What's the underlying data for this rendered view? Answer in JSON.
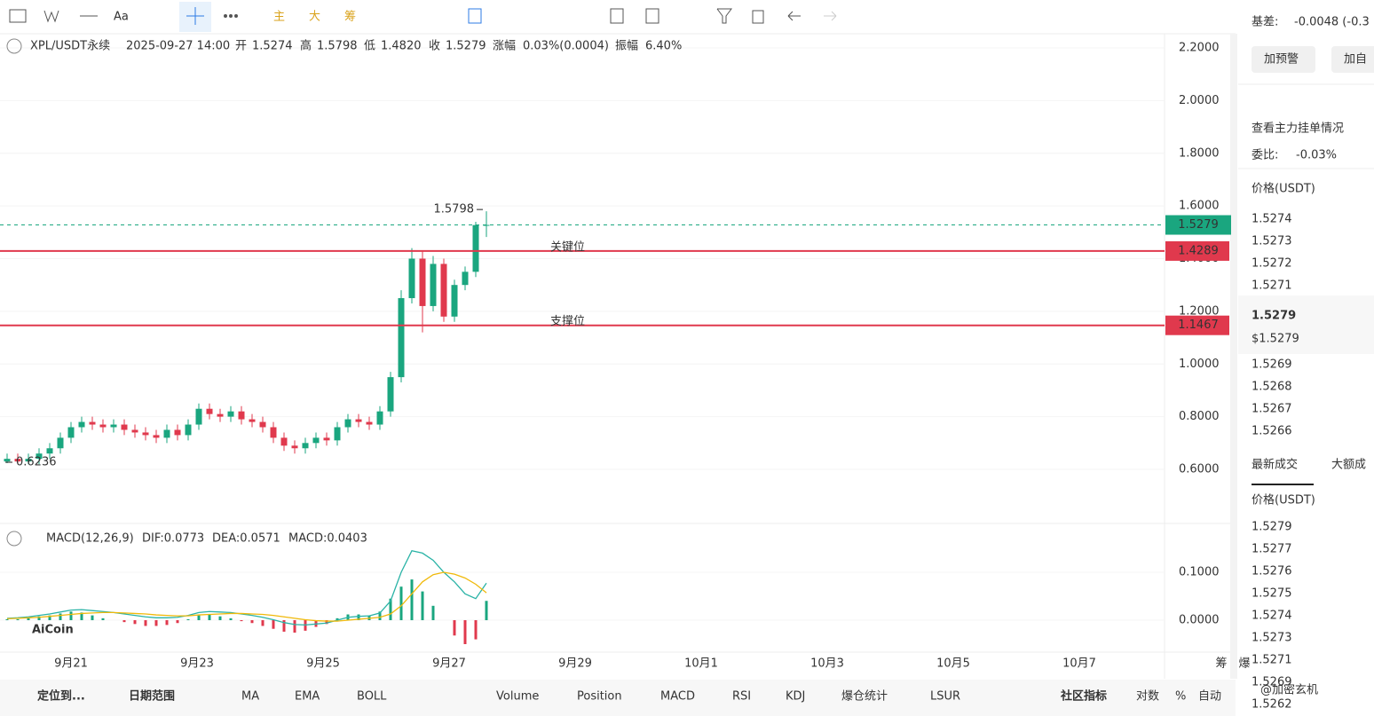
{
  "toolbar": {
    "font_icon": "Aa",
    "main": "主",
    "big": "大",
    "chips": "筹"
  },
  "chart_data": {
    "type": "candlestick",
    "header": {
      "symbol": "XPL/USDT永续",
      "time": "2025-09-27 14:00",
      "open_label": "开",
      "open": "1.5274",
      "high_label": "高",
      "high": "1.5798",
      "low_label": "低",
      "low": "1.4820",
      "close_label": "收",
      "close": "1.5279",
      "change_label": "涨幅",
      "change": "0.03%(0.0004)",
      "amp_label": "振幅",
      "amp": "6.40%"
    },
    "open": [
      0.63,
      0.64,
      0.63,
      0.64,
      0.66,
      0.68,
      0.72,
      0.76,
      0.78,
      0.77,
      0.76,
      0.77,
      0.75,
      0.74,
      0.73,
      0.72,
      0.75,
      0.73,
      0.77,
      0.83,
      0.81,
      0.8,
      0.82,
      0.79,
      0.78,
      0.76,
      0.72,
      0.69,
      0.68,
      0.7,
      0.72,
      0.71,
      0.76,
      0.79,
      0.78,
      0.77,
      0.82,
      0.95,
      1.25,
      1.4,
      1.22,
      1.38,
      1.18,
      1.3,
      1.35,
      1.5274
    ],
    "high": [
      0.66,
      0.66,
      0.66,
      0.68,
      0.7,
      0.74,
      0.78,
      0.8,
      0.8,
      0.79,
      0.79,
      0.79,
      0.77,
      0.76,
      0.75,
      0.77,
      0.77,
      0.79,
      0.85,
      0.85,
      0.83,
      0.84,
      0.84,
      0.81,
      0.8,
      0.78,
      0.74,
      0.71,
      0.72,
      0.74,
      0.74,
      0.78,
      0.81,
      0.81,
      0.8,
      0.84,
      0.97,
      1.28,
      1.44,
      1.43,
      1.41,
      1.4,
      1.32,
      1.37,
      1.54,
      1.5798
    ],
    "low": [
      0.6236,
      0.62,
      0.62,
      0.62,
      0.64,
      0.66,
      0.7,
      0.74,
      0.75,
      0.74,
      0.74,
      0.73,
      0.72,
      0.71,
      0.7,
      0.7,
      0.71,
      0.71,
      0.75,
      0.79,
      0.78,
      0.78,
      0.77,
      0.76,
      0.74,
      0.7,
      0.67,
      0.66,
      0.66,
      0.68,
      0.69,
      0.69,
      0.74,
      0.76,
      0.75,
      0.75,
      0.8,
      0.93,
      1.23,
      1.12,
      1.2,
      1.16,
      1.16,
      1.28,
      1.33,
      1.482
    ],
    "close": [
      0.64,
      0.63,
      0.64,
      0.66,
      0.68,
      0.72,
      0.76,
      0.78,
      0.77,
      0.76,
      0.77,
      0.75,
      0.74,
      0.73,
      0.72,
      0.75,
      0.73,
      0.77,
      0.83,
      0.81,
      0.8,
      0.82,
      0.79,
      0.78,
      0.76,
      0.72,
      0.69,
      0.68,
      0.7,
      0.72,
      0.71,
      0.76,
      0.79,
      0.78,
      0.77,
      0.82,
      0.95,
      1.25,
      1.4,
      1.22,
      1.38,
      1.18,
      1.3,
      1.35,
      1.5274,
      1.5279
    ],
    "up_color": "#1aa67f",
    "down_color": "#e0394d",
    "ylim": [
      0.5,
      2.3
    ],
    "yticks": [
      {
        "value": 2.2,
        "label": "2.2000"
      },
      {
        "value": 2.0,
        "label": "2.0000"
      },
      {
        "value": 1.8,
        "label": "1.8000"
      },
      {
        "value": 1.6,
        "label": "1.6000"
      },
      {
        "value": 1.4,
        "label": "1.4000"
      },
      {
        "value": 1.2,
        "label": "1.2000"
      },
      {
        "value": 1.0,
        "label": "1.0000"
      },
      {
        "value": 0.8,
        "label": "0.8000"
      },
      {
        "value": 0.6,
        "label": "0.6000"
      }
    ],
    "last_price": {
      "value": 1.5279,
      "label": "1.5279",
      "color": "#1aa67f"
    },
    "levels": [
      {
        "name": "关键位",
        "value": 1.4289,
        "label": "1.4289",
        "color": "#e0394d"
      },
      {
        "name": "支撑位",
        "value": 1.1467,
        "label": "1.1467",
        "color": "#e0394d"
      }
    ],
    "max_label": "1.5798",
    "min_label": "0.6236",
    "x_labels": [
      "9月21",
      "9月23",
      "9月25",
      "9月27",
      "9月29",
      "10月1",
      "10月3",
      "10月5",
      "10月7"
    ],
    "axis_corner": [
      "筹",
      "爆"
    ],
    "macd": {
      "title": "MACD(12,26,9)",
      "dif_label": "DIF:0.0773",
      "dea_label": "DEA:0.0571",
      "macd_label": "MACD:0.0403",
      "dif_color": "#2ab3a6",
      "dea_color": "#f0b90b",
      "dif": [
        0.004,
        0.005,
        0.007,
        0.01,
        0.013,
        0.017,
        0.021,
        0.022,
        0.02,
        0.018,
        0.016,
        0.013,
        0.01,
        0.007,
        0.005,
        0.005,
        0.006,
        0.01,
        0.016,
        0.018,
        0.017,
        0.016,
        0.013,
        0.01,
        0.006,
        0.001,
        -0.005,
        -0.009,
        -0.01,
        -0.008,
        -0.006,
        0.0,
        0.006,
        0.008,
        0.009,
        0.015,
        0.04,
        0.1,
        0.145,
        0.14,
        0.125,
        0.1,
        0.08,
        0.055,
        0.045,
        0.0773
      ],
      "dea": [
        0.003,
        0.004,
        0.005,
        0.006,
        0.008,
        0.01,
        0.012,
        0.014,
        0.015,
        0.016,
        0.016,
        0.015,
        0.014,
        0.013,
        0.011,
        0.01,
        0.009,
        0.009,
        0.011,
        0.012,
        0.013,
        0.014,
        0.014,
        0.013,
        0.012,
        0.01,
        0.007,
        0.004,
        0.001,
        -0.001,
        -0.002,
        -0.002,
        0.0,
        0.002,
        0.004,
        0.006,
        0.013,
        0.03,
        0.055,
        0.08,
        0.095,
        0.1,
        0.096,
        0.088,
        0.075,
        0.0571
      ],
      "hist": [
        0.002,
        0.002,
        0.004,
        0.008,
        0.01,
        0.014,
        0.018,
        0.016,
        0.01,
        0.004,
        0.0,
        -0.004,
        -0.008,
        -0.012,
        -0.012,
        -0.01,
        -0.006,
        0.002,
        0.01,
        0.012,
        0.008,
        0.004,
        -0.002,
        -0.006,
        -0.012,
        -0.018,
        -0.024,
        -0.026,
        -0.022,
        -0.014,
        -0.008,
        0.004,
        0.012,
        0.012,
        0.01,
        0.018,
        0.045,
        0.07,
        0.085,
        0.06,
        0.03,
        0.0,
        -0.032,
        -0.05,
        -0.04,
        0.0403
      ],
      "ylim": [
        -0.05,
        0.15
      ],
      "yticks": [
        {
          "value": 0.1,
          "label": "0.1000"
        },
        {
          "value": 0,
          "label": "0.0000"
        }
      ]
    },
    "watermark": "AiCoin"
  },
  "bottom_bar": {
    "locate": "定位到...",
    "range": "日期范围",
    "indicators": [
      "MA",
      "EMA",
      "BOLL"
    ],
    "subs": [
      "Volume",
      "Position",
      "MACD",
      "RSI",
      "KDJ",
      "爆仓统计",
      "LSUR"
    ],
    "community": "社区指标",
    "log": "对数",
    "pct": "%",
    "auto": "自动",
    "credit": "@加密玄机"
  },
  "right_panel": {
    "basis_label": "基差:",
    "basis": "-0.0048 (-0.3",
    "alert_btn": "加预警",
    "fav_btn": "加自",
    "main_orders": "查看主力挂单情况",
    "ratio_label": "委比:",
    "ratio": "-0.03%",
    "price_header": "价格(USDT)",
    "asks": [
      "1.5274",
      "1.5273",
      "1.5272",
      "1.5271"
    ],
    "mid": "1.5279",
    "mid_usd": "$1.5279",
    "bids": [
      "1.5269",
      "1.5268",
      "1.5267",
      "1.5266"
    ],
    "tab_trades": "最新成交",
    "tab_large": "大额成",
    "trades_header": "价格(USDT)",
    "trades": [
      "1.5279",
      "1.5277",
      "1.5276",
      "1.5275",
      "1.5274",
      "1.5273",
      "1.5271",
      "1.5269",
      "1.5262"
    ]
  }
}
